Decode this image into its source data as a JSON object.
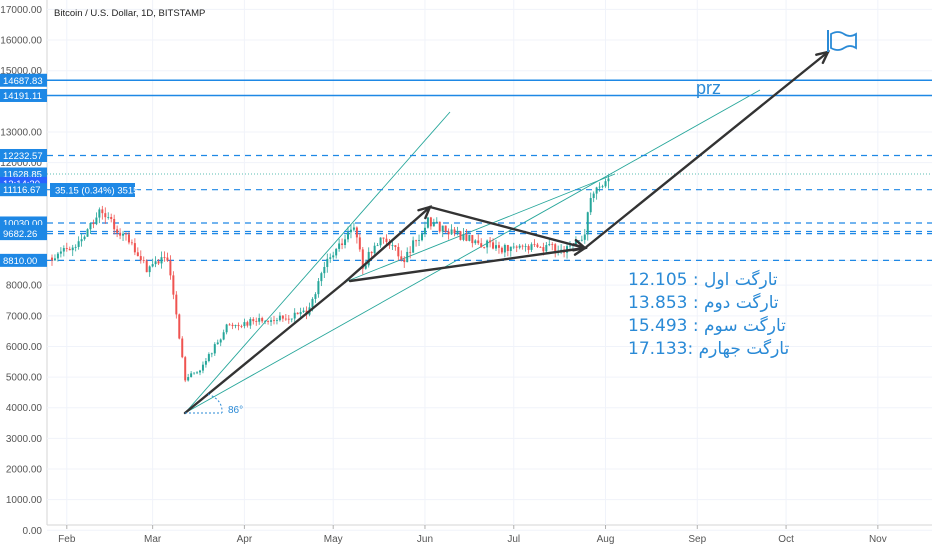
{
  "header": {
    "symbol_title": "Bitcoin / U.S. Dollar, 1D, BITSTAMP"
  },
  "colors": {
    "up": "#26a69a",
    "down": "#ef5350",
    "level_line": "#1e88e5",
    "trend_line": "#26a69a",
    "arrow": "#333333",
    "annotation": "#2a8ad6",
    "tag_bg": "#1e88e5",
    "tag_dark": "#2962ff"
  },
  "chart_data": {
    "type": "candlestick",
    "title": "Bitcoin / U.S. Dollar, 1D, BITSTAMP",
    "x_ticks": [
      "Feb",
      "Mar",
      "Apr",
      "May",
      "Jun",
      "Jul",
      "Aug",
      "Sep",
      "Oct",
      "Nov"
    ],
    "y_ticks": [
      "17000.00",
      "16000.00",
      "15000.00",
      "13000.00",
      "12000.00",
      "8800.00",
      "8000.00",
      "7000.00",
      "6000.00",
      "5000.00",
      "4000.00",
      "3000.00",
      "2000.00",
      "1000.00",
      "0.00"
    ],
    "ylim": [
      0,
      17300
    ],
    "price_tags": [
      {
        "label": "14687.83",
        "value": 14687.83
      },
      {
        "label": "14191.11",
        "value": 14191.11
      },
      {
        "label": "12232.57",
        "value": 12232.57
      },
      {
        "label": "11628.85",
        "value": 11628.85
      },
      {
        "label": "12:14:20",
        "value": 11320
      },
      {
        "label": "11116.67",
        "value": 11116.67
      },
      {
        "label": "10030.00",
        "value": 10030.0
      },
      {
        "label": "9751.31",
        "value": 9751.31
      },
      {
        "label": "9682.26",
        "value": 9682.26
      },
      {
        "label": "8810.00",
        "value": 8810.0
      }
    ],
    "solid_levels": [
      14687.83,
      14191.11
    ],
    "dashed_levels": [
      12232.57,
      11116.67,
      10030.0,
      9751.31,
      9682.26,
      8810.0
    ],
    "price_info_label": "35.15 (0.34%) 3515",
    "annotations": {
      "prz": "prz",
      "targets": [
        "12.105 : تارگت اول",
        "13.853 : تارگت دوم",
        "15.493 : تارگت سوم",
        "17.133: تارگت جهارم"
      ],
      "angle": "86°"
    },
    "price_path": [
      [
        "2020-01-27",
        8900
      ],
      [
        "2020-02-04",
        9250
      ],
      [
        "2020-02-12",
        10350
      ],
      [
        "2020-02-20",
        9650
      ],
      [
        "2020-02-28",
        8550
      ],
      [
        "2020-03-06",
        8950
      ],
      [
        "2020-03-12",
        4900
      ],
      [
        "2020-03-18",
        5350
      ],
      [
        "2020-03-26",
        6650
      ],
      [
        "2020-04-05",
        6850
      ],
      [
        "2020-04-15",
        6900
      ],
      [
        "2020-04-22",
        7150
      ],
      [
        "2020-04-29",
        8750
      ],
      [
        "2020-05-08",
        9850
      ],
      [
        "2020-05-11",
        8650
      ],
      [
        "2020-05-18",
        9650
      ],
      [
        "2020-05-25",
        8850
      ],
      [
        "2020-06-02",
        10100
      ],
      [
        "2020-06-10",
        9700
      ],
      [
        "2020-06-20",
        9350
      ],
      [
        "2020-06-30",
        9150
      ],
      [
        "2020-07-10",
        9250
      ],
      [
        "2020-07-20",
        9200
      ],
      [
        "2020-07-25",
        9650
      ],
      [
        "2020-07-27",
        11000
      ],
      [
        "2020-08-02",
        11500
      ]
    ]
  }
}
